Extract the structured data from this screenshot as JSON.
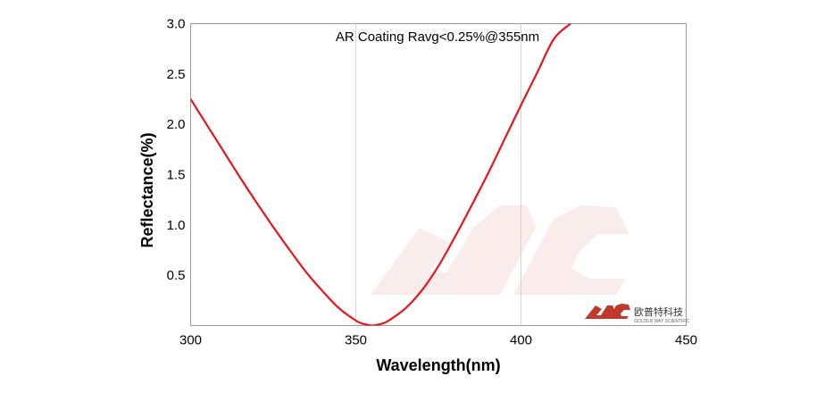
{
  "chart_data": {
    "type": "line",
    "title": "",
    "annotation": "AR Coating Ravg<0.25%@355nm",
    "xlabel": "Wavelength(nm)",
    "ylabel": "Reflectance(%)",
    "xlim": [
      300,
      450
    ],
    "ylim": [
      0,
      3.0
    ],
    "xticks": [
      300,
      350,
      400,
      450
    ],
    "yticks": [
      0.5,
      1.0,
      1.5,
      2.0,
      2.5,
      3.0
    ],
    "xtick_labels": [
      "300",
      "350",
      "400",
      "450"
    ],
    "ytick_labels": [
      "0.5",
      "1.0",
      "1.5",
      "2.0",
      "2.5",
      "3.0"
    ],
    "grid": {
      "x": true,
      "y": false
    },
    "series": [
      {
        "color": "#e8141c",
        "x": [
          300,
          305,
          310,
          315,
          320,
          325,
          330,
          335,
          340,
          345,
          350,
          352,
          354,
          355,
          356,
          358,
          360,
          365,
          370,
          375,
          380,
          385,
          390,
          395,
          400,
          405,
          410,
          415
        ],
        "y": [
          2.25,
          1.99,
          1.73,
          1.47,
          1.22,
          0.98,
          0.75,
          0.53,
          0.34,
          0.17,
          0.05,
          0.02,
          0.004,
          0.0,
          0.004,
          0.02,
          0.05,
          0.17,
          0.35,
          0.59,
          0.88,
          1.19,
          1.51,
          1.85,
          2.19,
          2.52,
          2.85,
          3.0
        ]
      }
    ]
  },
  "logo": {
    "cn": "欧普特科技",
    "en": "GOLDEN WAY SCIENTIFIC",
    "color": "#c0392b"
  }
}
